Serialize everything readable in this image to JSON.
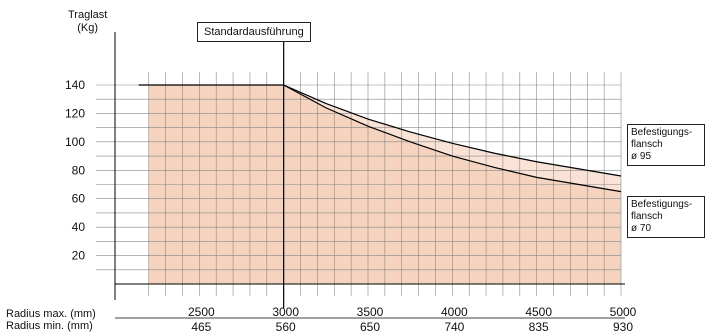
{
  "chart_data": {
    "type": "line",
    "ylabel_lines": [
      "Traglast",
      "(Kg)"
    ],
    "annotation": "Standardausführung",
    "yticks": [
      20,
      40,
      60,
      80,
      100,
      120,
      140
    ],
    "xaxis_max_label": "Radius max. (mm)",
    "xaxis_min_label": "Radius min. (mm)",
    "xticks_max": [
      "2500",
      "3000",
      "3500",
      "4000",
      "4500",
      "5000"
    ],
    "xticks_min": [
      "465",
      "560",
      "650",
      "740",
      "835",
      "930"
    ],
    "xlim": [
      2000,
      5000
    ],
    "ylim": [
      0,
      150
    ],
    "series": [
      {
        "legend_lines": [
          "Befestigungs-",
          "flansch",
          "ø 95"
        ],
        "points": [
          [
            2000,
            140
          ],
          [
            3000,
            140
          ],
          [
            3250,
            127
          ],
          [
            3500,
            116
          ],
          [
            3750,
            107
          ],
          [
            4000,
            99
          ],
          [
            4250,
            92
          ],
          [
            4500,
            86
          ],
          [
            4750,
            81
          ],
          [
            5000,
            76
          ]
        ]
      },
      {
        "legend_lines": [
          "Befestigungs-",
          "flansch",
          "ø 70"
        ],
        "points": [
          [
            2000,
            140
          ],
          [
            3000,
            140
          ],
          [
            3250,
            124
          ],
          [
            3500,
            111
          ],
          [
            3750,
            100
          ],
          [
            4000,
            90
          ],
          [
            4250,
            82
          ],
          [
            4500,
            75
          ],
          [
            4750,
            70
          ],
          [
            5000,
            65
          ]
        ]
      }
    ],
    "colors": {
      "fill": "#f6d3bf",
      "band": "#fae3d6",
      "grid": "#888888",
      "line": "#000000"
    }
  }
}
